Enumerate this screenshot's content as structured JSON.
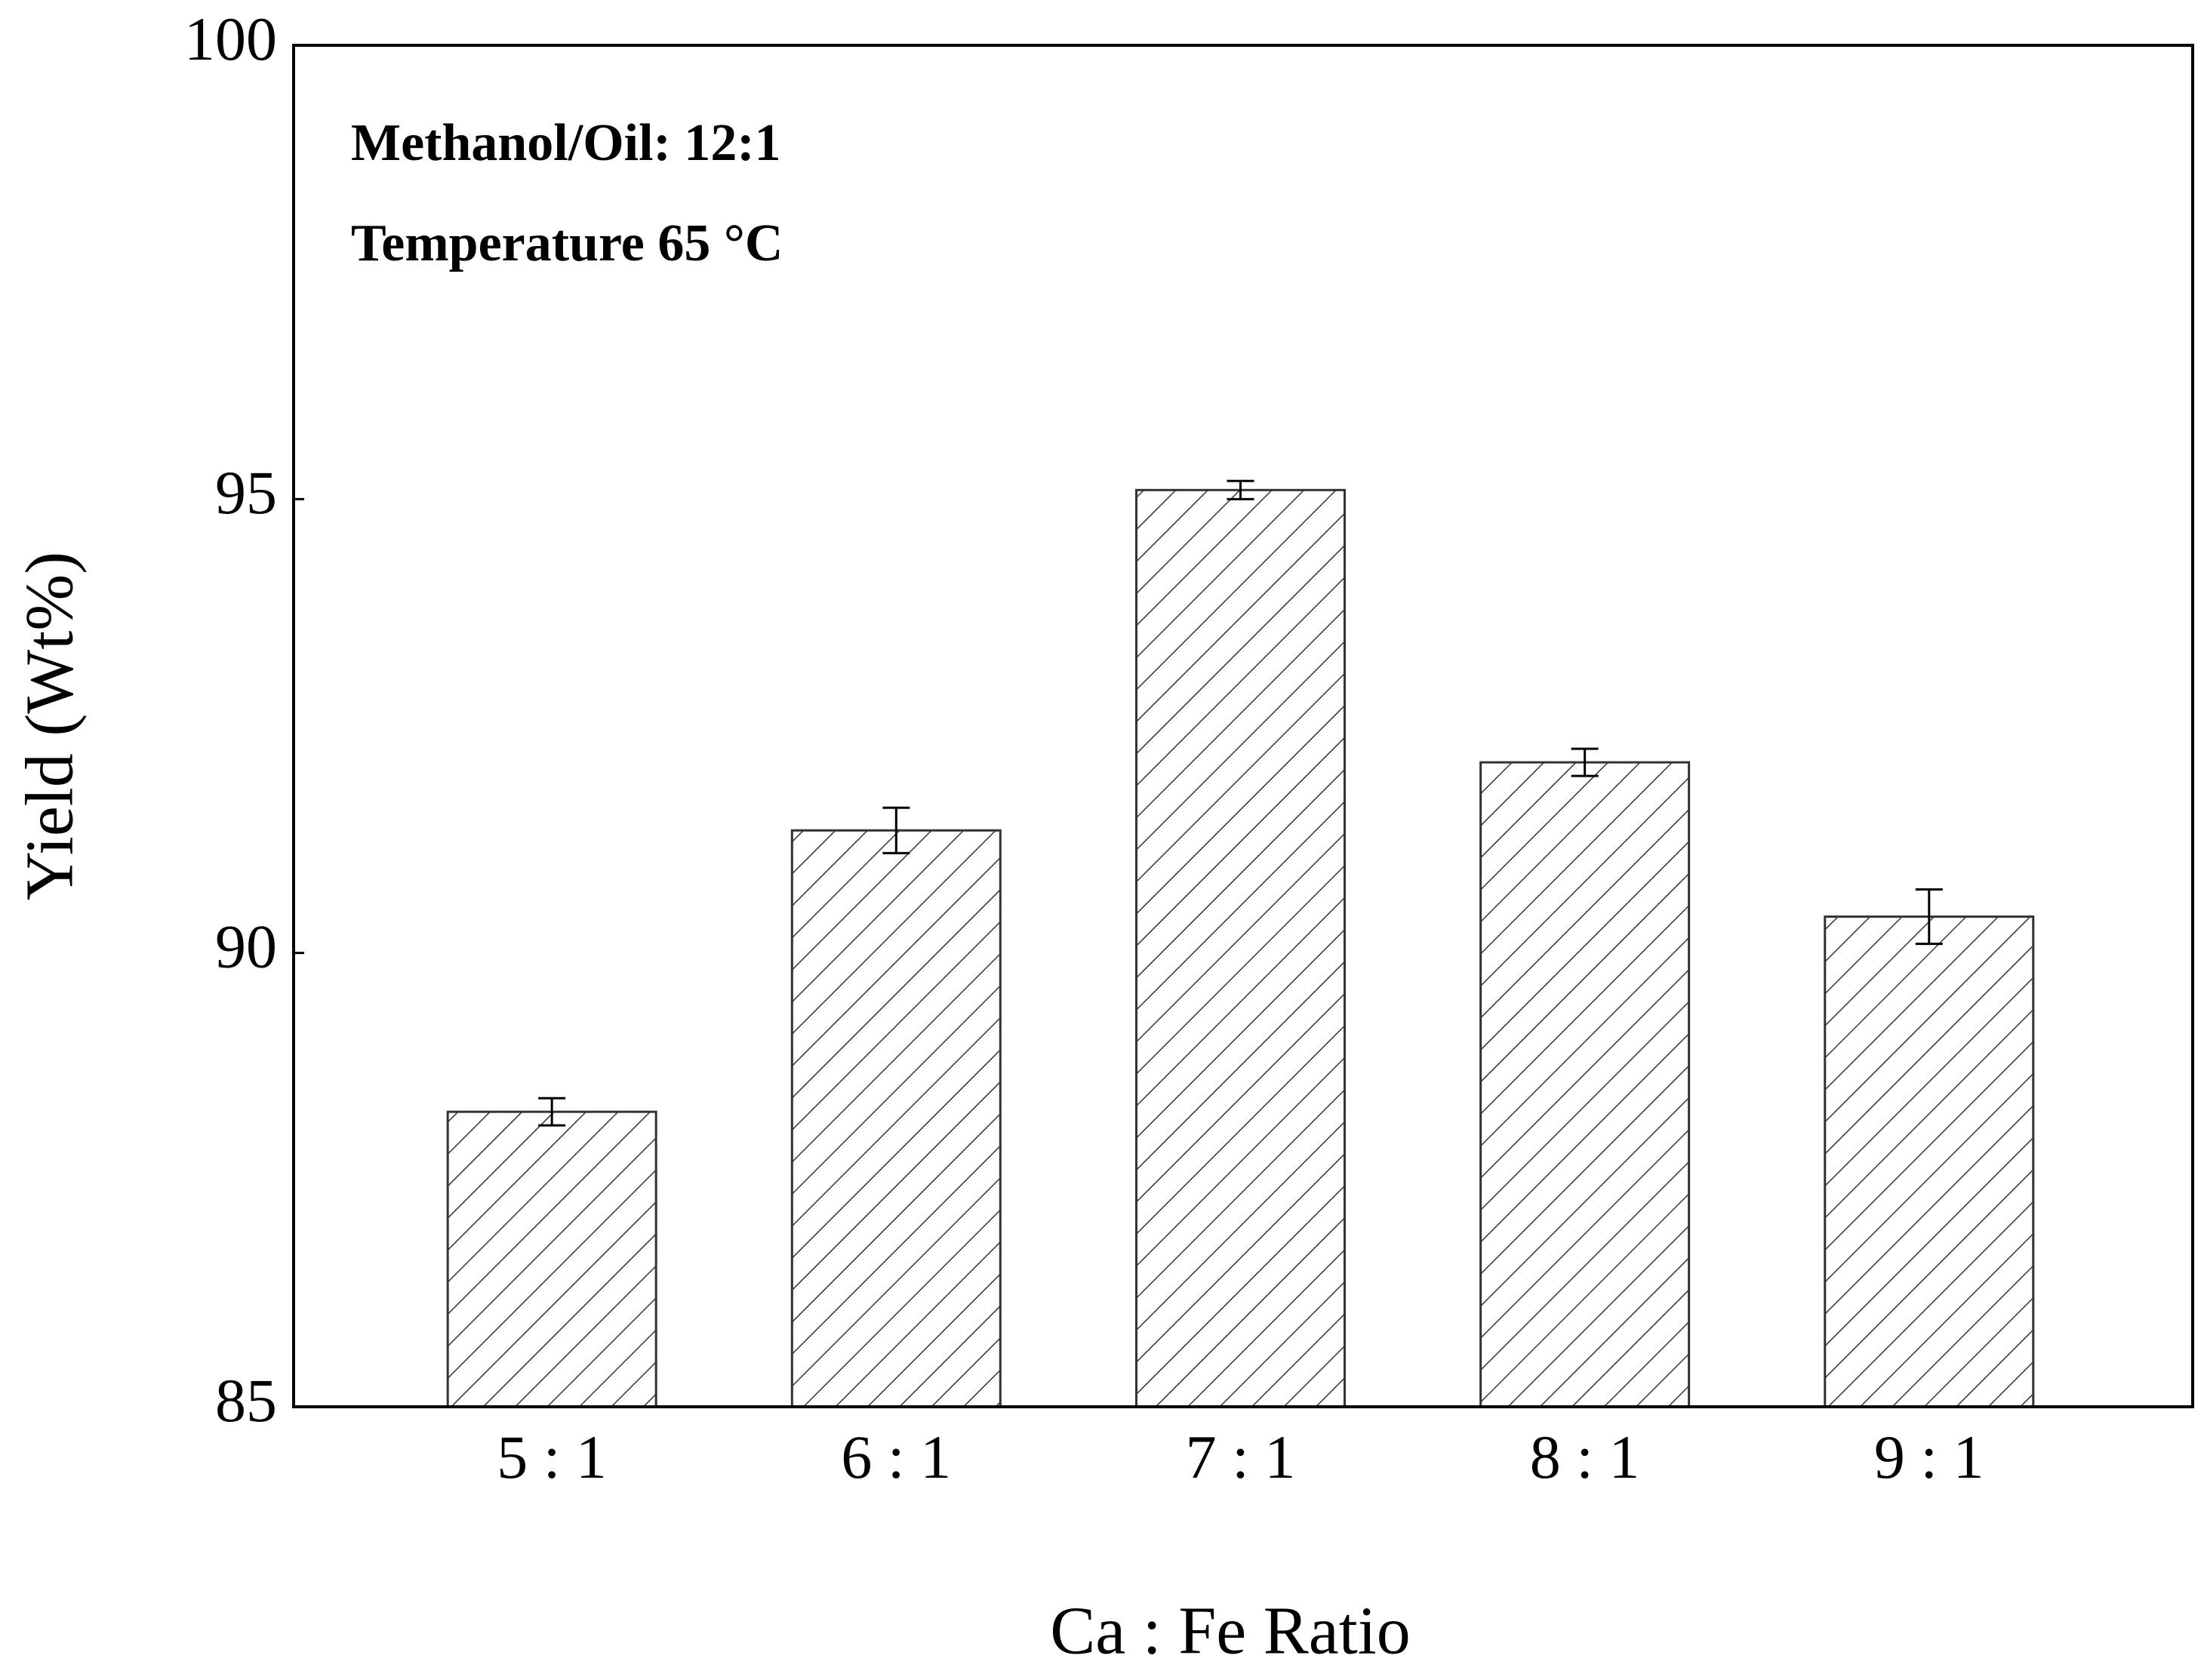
{
  "chart_data": {
    "type": "bar",
    "annotations": [
      "Methanol/Oil: 12:1",
      "Temperature 65 °C"
    ],
    "x_label": "Ca : Fe Ratio",
    "y_label": "Yield (Wt%)",
    "categories": [
      "5 : 1",
      "6 : 1",
      "7 : 1",
      "8 : 1",
      "9 : 1"
    ],
    "values": [
      88.25,
      91.35,
      95.1,
      92.1,
      90.4
    ],
    "errors": [
      0.15,
      0.25,
      0.1,
      0.15,
      0.3
    ],
    "color": "#333333",
    "ylim": [
      85,
      100
    ],
    "yticks": [
      85,
      90,
      95,
      100
    ],
    "grid": false
  }
}
